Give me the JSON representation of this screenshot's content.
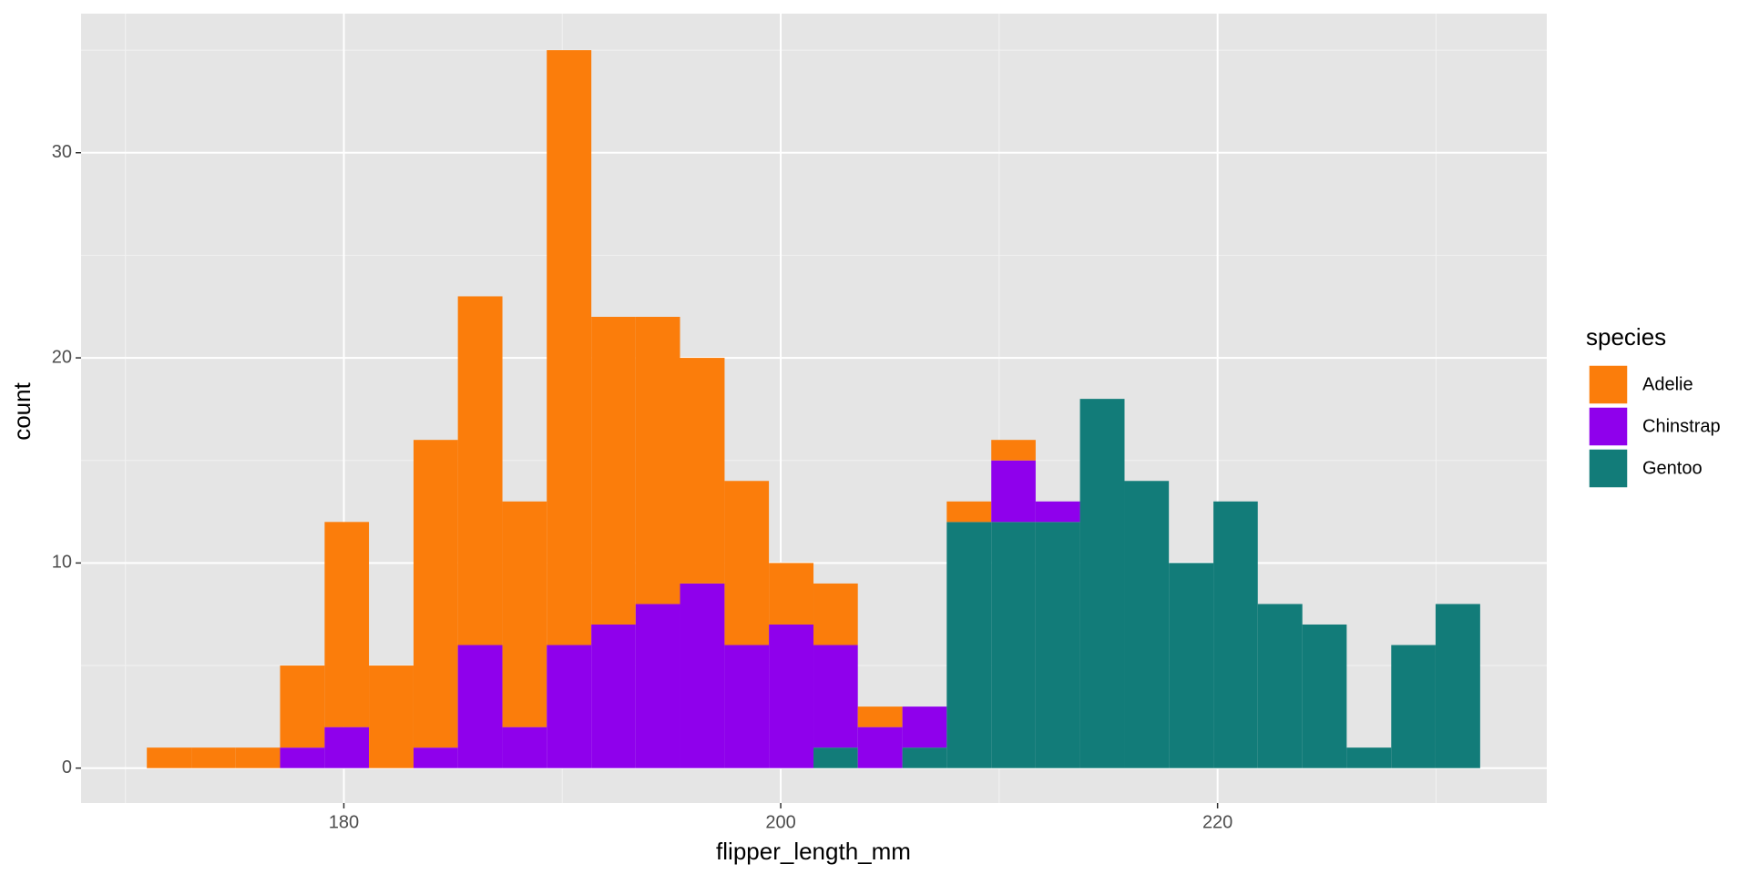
{
  "chart_data": {
    "type": "histogram",
    "stacked": true,
    "x_label": "flipper_length_mm",
    "y_label": "count",
    "legend_title": "species",
    "legend_position": "right",
    "grid": true,
    "bins": [
      170.98,
      173.02,
      175.05,
      177.08,
      179.12,
      181.15,
      183.19,
      185.22,
      187.26,
      189.29,
      191.33,
      193.36,
      195.39,
      197.43,
      199.46,
      201.5,
      203.53,
      205.57,
      207.6,
      209.64,
      211.67,
      213.7,
      215.74,
      217.77,
      219.81,
      221.84,
      223.88,
      225.91,
      227.95,
      229.98,
      232.02
    ],
    "series": [
      {
        "name": "Adelie",
        "color": "#fb7d0b",
        "values": [
          1,
          1,
          1,
          4,
          10,
          5,
          15,
          17,
          11,
          29,
          15,
          14,
          11,
          8,
          3,
          3,
          1,
          0,
          1,
          1,
          0,
          0,
          0,
          0,
          0,
          0,
          0,
          0,
          0,
          0
        ]
      },
      {
        "name": "Chinstrap",
        "color": "#8f00ec",
        "values": [
          0,
          0,
          0,
          1,
          2,
          0,
          1,
          6,
          2,
          6,
          7,
          8,
          9,
          6,
          7,
          5,
          2,
          2,
          0,
          3,
          1,
          0,
          0,
          0,
          0,
          0,
          0,
          0,
          0,
          0
        ]
      },
      {
        "name": "Gentoo",
        "color": "#127c79",
        "values": [
          0,
          0,
          0,
          0,
          0,
          0,
          0,
          0,
          0,
          0,
          0,
          0,
          0,
          0,
          0,
          1,
          0,
          1,
          12,
          12,
          12,
          18,
          14,
          10,
          13,
          8,
          7,
          1,
          6,
          8
        ]
      }
    ],
    "xlim": [
      167.97,
      235.07
    ],
    "ylim": [
      -1.7,
      36.78
    ],
    "xticks": [
      180,
      200,
      220
    ],
    "yticks": [
      0,
      10,
      20,
      30
    ],
    "x_minor_ticks": [
      170,
      190,
      210,
      230
    ],
    "y_minor_ticks": [
      5,
      15,
      25,
      35
    ]
  }
}
